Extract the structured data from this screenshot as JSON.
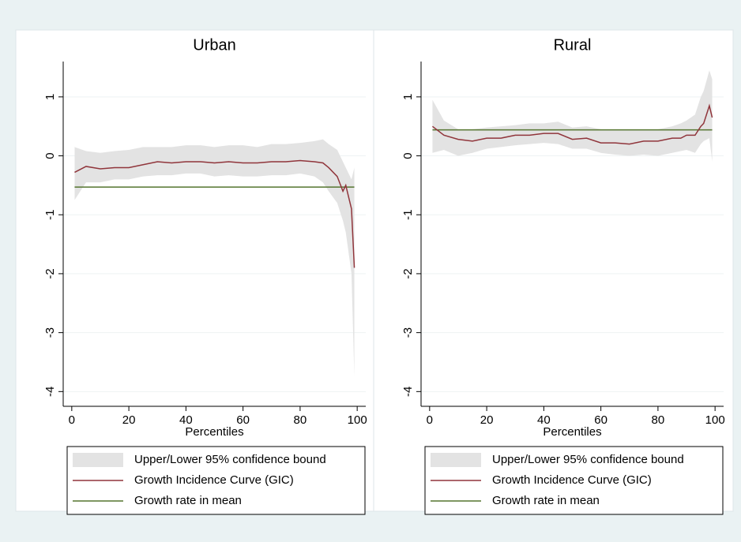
{
  "chart_data": [
    {
      "type": "line",
      "title": "Urban",
      "xlabel": "Percentiles",
      "x": [
        1,
        5,
        10,
        15,
        20,
        25,
        30,
        35,
        40,
        45,
        50,
        55,
        60,
        65,
        70,
        75,
        80,
        85,
        88,
        90,
        93,
        95,
        96,
        98,
        99
      ],
      "xlim": [
        -3,
        103
      ],
      "xticks": [
        0,
        20,
        40,
        60,
        80,
        100
      ],
      "ylim": [
        -4.25,
        1.6
      ],
      "yticks": [
        -4,
        -3,
        -2,
        -1,
        0,
        1
      ],
      "grid": true,
      "series": [
        {
          "name": "Upper/Lower 95% confidence bound",
          "color": "#e3e3e3",
          "upper": [
            0.15,
            0.08,
            0.05,
            0.08,
            0.1,
            0.15,
            0.15,
            0.15,
            0.18,
            0.18,
            0.15,
            0.18,
            0.18,
            0.15,
            0.2,
            0.2,
            0.22,
            0.25,
            0.28,
            0.2,
            0.1,
            -0.1,
            -0.2,
            -0.4,
            -0.2
          ],
          "lower": [
            -0.75,
            -0.45,
            -0.45,
            -0.4,
            -0.4,
            -0.35,
            -0.33,
            -0.33,
            -0.3,
            -0.3,
            -0.35,
            -0.33,
            -0.35,
            -0.35,
            -0.33,
            -0.33,
            -0.3,
            -0.35,
            -0.45,
            -0.6,
            -0.8,
            -1.1,
            -1.3,
            -2.0,
            -3.75
          ]
        },
        {
          "name": "Growth Incidence Curve (GIC)",
          "color": "#90353b",
          "values": [
            -0.28,
            -0.18,
            -0.22,
            -0.2,
            -0.2,
            -0.15,
            -0.1,
            -0.12,
            -0.1,
            -0.1,
            -0.12,
            -0.1,
            -0.12,
            -0.12,
            -0.1,
            -0.1,
            -0.08,
            -0.1,
            -0.12,
            -0.2,
            -0.35,
            -0.6,
            -0.5,
            -0.9,
            -1.9
          ]
        },
        {
          "name": "Growth rate in mean",
          "color": "#55752f",
          "value": -0.53
        }
      ]
    },
    {
      "type": "line",
      "title": "Rural",
      "xlabel": "Percentiles",
      "x": [
        1,
        5,
        10,
        15,
        20,
        25,
        30,
        35,
        40,
        45,
        50,
        55,
        60,
        65,
        70,
        75,
        80,
        85,
        88,
        90,
        93,
        95,
        96,
        98,
        99
      ],
      "xlim": [
        -3,
        103
      ],
      "xticks": [
        0,
        20,
        40,
        60,
        80,
        100
      ],
      "ylim": [
        -4.25,
        1.6
      ],
      "yticks": [
        -4,
        -3,
        -2,
        -1,
        0,
        1
      ],
      "grid": true,
      "series": [
        {
          "name": "Upper/Lower 95% confidence bound",
          "color": "#e3e3e3",
          "upper": [
            0.95,
            0.6,
            0.45,
            0.45,
            0.48,
            0.5,
            0.52,
            0.55,
            0.55,
            0.58,
            0.48,
            0.5,
            0.45,
            0.45,
            0.45,
            0.45,
            0.45,
            0.5,
            0.55,
            0.6,
            0.7,
            1.0,
            1.1,
            1.45,
            1.3
          ],
          "lower": [
            0.05,
            0.1,
            0.0,
            0.05,
            0.12,
            0.15,
            0.18,
            0.2,
            0.22,
            0.2,
            0.12,
            0.12,
            0.05,
            0.02,
            0.0,
            0.02,
            0.0,
            0.05,
            0.08,
            0.1,
            0.05,
            0.2,
            0.25,
            0.3,
            -0.1
          ]
        },
        {
          "name": "Growth Incidence Curve (GIC)",
          "color": "#90353b",
          "values": [
            0.5,
            0.35,
            0.28,
            0.25,
            0.3,
            0.3,
            0.35,
            0.35,
            0.38,
            0.38,
            0.28,
            0.3,
            0.22,
            0.22,
            0.2,
            0.25,
            0.25,
            0.3,
            0.3,
            0.35,
            0.35,
            0.5,
            0.55,
            0.85,
            0.65
          ]
        },
        {
          "name": "Growth rate in mean",
          "color": "#55752f",
          "value": 0.44
        }
      ]
    }
  ]
}
